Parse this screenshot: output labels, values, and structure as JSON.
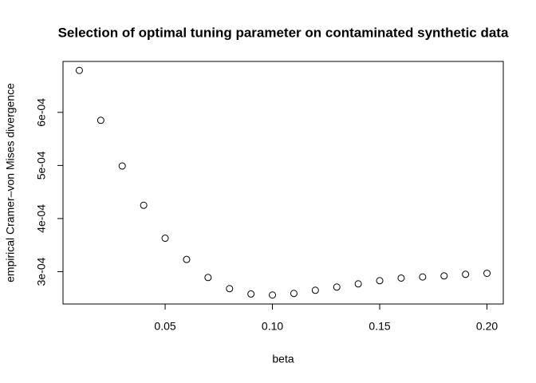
{
  "chart_data": {
    "type": "scatter",
    "title": "Selection of optimal tuning parameter on contaminated synthetic data",
    "x_label": "beta",
    "y_label": "empirical Cramer–von Mises divergence",
    "x": [
      0.01,
      0.02,
      0.03,
      0.04,
      0.05,
      0.06,
      0.07,
      0.08,
      0.09,
      0.1,
      0.11,
      0.12,
      0.13,
      0.14,
      0.15,
      0.16,
      0.17,
      0.18,
      0.19,
      0.2
    ],
    "values": [
      0.000679,
      0.000585,
      0.000499,
      0.000425,
      0.000363,
      0.000323,
      0.000289,
      0.000268,
      0.000258,
      0.000256,
      0.000259,
      0.000265,
      0.000271,
      0.000277,
      0.000283,
      0.000288,
      0.00029,
      0.000292,
      0.000295,
      0.000297
    ],
    "color": "#000000",
    "xlim": [
      0.0024,
      0.2076
    ],
    "ylim": [
      0.0002391,
      0.0006959
    ],
    "xticks": [
      0.05,
      {
        "value": 0.1,
        "label": "0.10"
      },
      0.15,
      {
        "value": 0.2,
        "label": "0.20"
      }
    ],
    "yticks": [
      {
        "value": 0.0003,
        "label": "3e-04"
      },
      {
        "value": 0.0004,
        "label": "4e-04"
      },
      {
        "value": 0.0005,
        "label": "5e-04"
      },
      {
        "value": 0.0006,
        "label": "6e-04"
      }
    ]
  }
}
